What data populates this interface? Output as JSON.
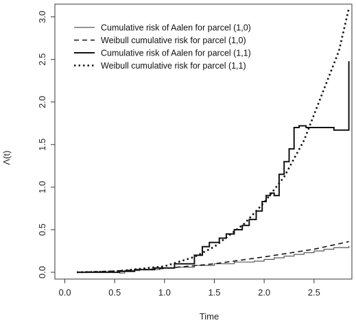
{
  "chart_data": {
    "type": "line",
    "title": "",
    "xlabel": "Time",
    "ylabel": "Λ(t)",
    "xlim": [
      -0.1,
      2.88
    ],
    "ylim": [
      -0.08,
      3.15
    ],
    "xticks": [
      "0.0",
      "0.5",
      "1.0",
      "1.5",
      "2.0",
      "2.5"
    ],
    "yticks": [
      "0.0",
      "0.5",
      "1.0",
      "1.5",
      "2.0",
      "2.5",
      "3.0"
    ],
    "grid": false,
    "legend_position": "top-left",
    "series": [
      {
        "name": "Cumulative risk of Aalen for parcel (1,0)",
        "style": "step-thin",
        "color": "#555555",
        "x": [
          0.12,
          0.4,
          0.55,
          0.6,
          0.75,
          0.95,
          1.1,
          1.3,
          1.5,
          1.7,
          1.9,
          2.0,
          2.1,
          2.2,
          2.3,
          2.4,
          2.5,
          2.6,
          2.7,
          2.85
        ],
        "y": [
          0.0,
          0.0,
          -0.01,
          0.02,
          0.03,
          0.05,
          0.06,
          0.08,
          0.1,
          0.12,
          0.13,
          0.15,
          0.17,
          0.19,
          0.21,
          0.23,
          0.25,
          0.27,
          0.29,
          0.31
        ]
      },
      {
        "name": "Weibull cumulative risk for parcel (1,0)",
        "style": "dashed",
        "color": "#111111",
        "x": [
          0.12,
          0.5,
          1.0,
          1.5,
          2.0,
          2.5,
          2.85
        ],
        "y": [
          0.0,
          0.015,
          0.045,
          0.1,
          0.18,
          0.27,
          0.36
        ]
      },
      {
        "name": "Cumulative risk of Aalen for parcel (1,1)",
        "style": "step-thick",
        "color": "#111111",
        "x": [
          0.12,
          0.55,
          0.7,
          0.9,
          1.1,
          1.3,
          1.38,
          1.45,
          1.55,
          1.62,
          1.7,
          1.78,
          1.85,
          1.92,
          1.98,
          2.02,
          2.06,
          2.1,
          2.15,
          2.2,
          2.25,
          2.3,
          2.35,
          2.42,
          2.7,
          2.85
        ],
        "y": [
          0.0,
          0.01,
          0.03,
          0.05,
          0.1,
          0.2,
          0.3,
          0.35,
          0.4,
          0.45,
          0.5,
          0.55,
          0.62,
          0.72,
          0.83,
          0.9,
          0.93,
          0.9,
          1.15,
          1.3,
          1.45,
          1.7,
          1.72,
          1.7,
          1.67,
          2.48
        ]
      },
      {
        "name": "Weibull cumulative risk for parcel (1,1)",
        "style": "dotted",
        "color": "#111111",
        "x": [
          0.12,
          0.5,
          1.0,
          1.3,
          1.5,
          1.8,
          2.0,
          2.2,
          2.4,
          2.6,
          2.75,
          2.85
        ],
        "y": [
          0.0,
          0.01,
          0.07,
          0.18,
          0.3,
          0.57,
          0.82,
          1.12,
          1.55,
          2.15,
          2.6,
          3.1
        ]
      }
    ]
  }
}
